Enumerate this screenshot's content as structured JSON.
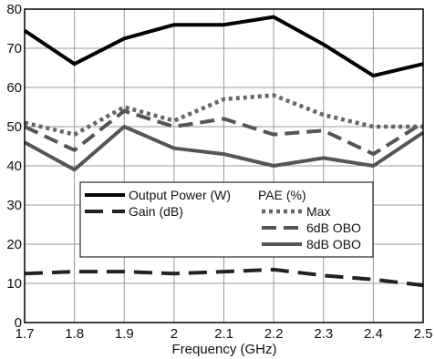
{
  "chart_data": {
    "type": "line",
    "xlabel": "Frequency (GHz)",
    "ylabel": "",
    "xlim": [
      1.7,
      2.5
    ],
    "ylim": [
      0,
      80
    ],
    "x": [
      1.7,
      1.8,
      1.9,
      2.0,
      2.1,
      2.2,
      2.3,
      2.4,
      2.5
    ],
    "x_ticks": [
      "1.7",
      "1.8",
      "1.9",
      "2",
      "2.1",
      "2.2",
      "2.3",
      "2.4",
      "2.5"
    ],
    "y_ticks": [
      "0",
      "10",
      "20",
      "30",
      "40",
      "50",
      "60",
      "70",
      "80"
    ],
    "grid": true,
    "legend_placement": "center-left",
    "legend_group_title": "PAE (%)",
    "series": [
      {
        "name": "Output Power (W)",
        "values": [
          74.5,
          66,
          72.5,
          76,
          76,
          78,
          71,
          63,
          66
        ],
        "style": "solid",
        "color": "#000000"
      },
      {
        "name": "Gain (dB)",
        "values": [
          12.5,
          13,
          13,
          12.5,
          13,
          13.5,
          12,
          11,
          9.5
        ],
        "style": "longdash",
        "color": "#222222"
      },
      {
        "name": "Max",
        "values": [
          51,
          48,
          55,
          51.5,
          57,
          58,
          53,
          50,
          50
        ],
        "style": "dotted",
        "color": "#666666"
      },
      {
        "name": "6dB OBO",
        "values": [
          50,
          44,
          54,
          50,
          52,
          48,
          49,
          43,
          51
        ],
        "style": "dashed",
        "color": "#555555"
      },
      {
        "name": "8dB OBO",
        "values": [
          46,
          39,
          50,
          44.5,
          43,
          40,
          42,
          40,
          48.5
        ],
        "style": "solid",
        "color": "#555555"
      }
    ]
  }
}
